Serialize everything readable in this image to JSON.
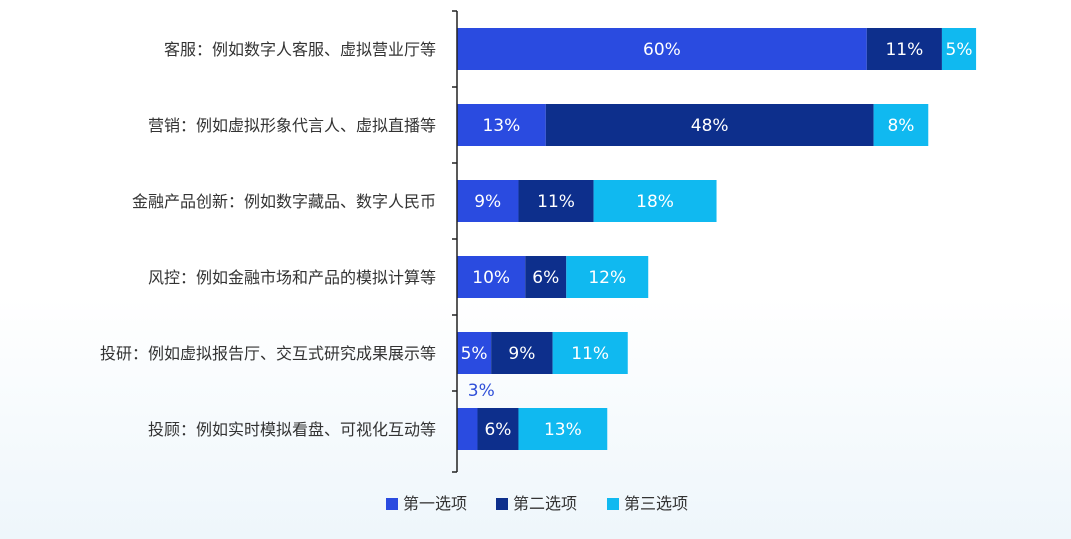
{
  "chart_data": {
    "type": "bar",
    "orientation": "horizontal",
    "stacked": true,
    "categories": [
      "客服：例如数字人客服、虚拟营业厅等",
      "营销：例如虚拟形象代言人、虚拟直播等",
      "金融产品创新：例如数字藏品、数字人民币",
      "风控：例如金融市场和产品的模拟计算等",
      "投研：例如虚拟报告厅、交互式研究成果展示等",
      "投顾：例如实时模拟看盘、可视化互动等"
    ],
    "series": [
      {
        "name": "第一选项",
        "color": "#2a4be0",
        "values": [
          60,
          13,
          9,
          10,
          5,
          3
        ],
        "labels": [
          "60%",
          "13%",
          "9%",
          "10%",
          "5%",
          "3%"
        ]
      },
      {
        "name": "第二选项",
        "color": "#0d2f8c",
        "values": [
          11,
          48,
          11,
          6,
          9,
          6
        ],
        "labels": [
          "11%",
          "48%",
          "11%",
          "6%",
          "9%",
          "6%"
        ]
      },
      {
        "name": "第三选项",
        "color": "#10b9f0",
        "values": [
          5,
          8,
          18,
          12,
          11,
          13
        ],
        "labels": [
          "5%",
          "8%",
          "18%",
          "12%",
          "11%",
          "13%"
        ]
      }
    ],
    "xlim": [
      0,
      76
    ],
    "grid": false,
    "legend": "bottom-center"
  }
}
